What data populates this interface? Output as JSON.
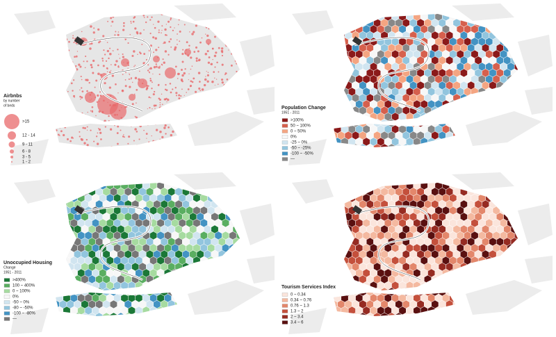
{
  "panels": [
    {
      "title": [
        "Airbnbs",
        "by number",
        "of beds"
      ],
      "legend": [
        {
          "label": ">15",
          "color": "#e8696b"
        },
        {
          "label": "12 - 14",
          "color": "#e8696b"
        },
        {
          "label": "9 - 11",
          "color": "#e8696b"
        },
        {
          "label": "6 - 8",
          "color": "#e8696b"
        },
        {
          "label": "3 - 5",
          "color": "#e8696b"
        },
        {
          "label": "1 - 2",
          "color": "#e8696b"
        }
      ]
    },
    {
      "title": [
        "Population Change",
        "1951 - 2011"
      ],
      "legend": [
        {
          "label": ">100%",
          "color": "#8b1a1a"
        },
        {
          "label": "50 ~ 100%",
          "color": "#d6604d"
        },
        {
          "label": "0 ~ 50%",
          "color": "#f4a582"
        },
        {
          "label": "0%",
          "color": "#f7f7f7"
        },
        {
          "label": "-25 ~ 0%",
          "color": "#d1e5f0"
        },
        {
          "label": "-50 ~ -25%",
          "color": "#92c5de"
        },
        {
          "label": "-100 ~ -50%",
          "color": "#4393c3"
        },
        {
          "label": "—",
          "color": "#888888"
        }
      ]
    },
    {
      "title": [
        "Unoccupied Housing",
        "Change",
        "1951 - 2011"
      ],
      "legend": [
        {
          "label": ">400%",
          "color": "#1b7837"
        },
        {
          "label": "100 ~ 400%",
          "color": "#5aae61"
        },
        {
          "label": "0 ~ 100%",
          "color": "#a6dba0"
        },
        {
          "label": "0%",
          "color": "#f7f7f7"
        },
        {
          "label": "-50 ~ 0%",
          "color": "#d1e5f0"
        },
        {
          "label": "-80 ~ -50%",
          "color": "#92c5de"
        },
        {
          "label": "-100 ~ -80%",
          "color": "#4393c3"
        },
        {
          "label": "—",
          "color": "#777777"
        }
      ]
    },
    {
      "title": [
        "Tourism Services Index"
      ],
      "legend": [
        {
          "label": "0 ~ 0.34",
          "color": "#fbe5dc"
        },
        {
          "label": "0.34 ~ 0.76",
          "color": "#f4b9a0"
        },
        {
          "label": "0.76 ~ 1.3",
          "color": "#e3876b"
        },
        {
          "label": "1.3 ~ 2",
          "color": "#c4503c"
        },
        {
          "label": "2 ~ 3.4",
          "color": "#962b22"
        },
        {
          "label": "3.4 ~ 6",
          "color": "#5a1010"
        }
      ]
    }
  ]
}
